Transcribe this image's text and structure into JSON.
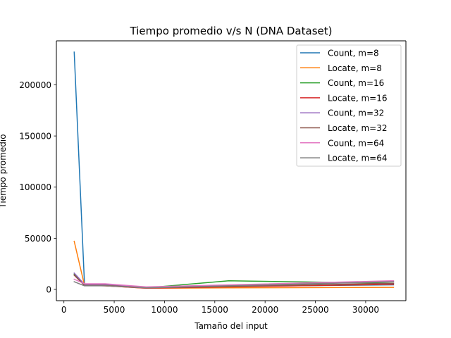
{
  "chart_data": {
    "type": "line",
    "title": "Tiempo promedio v/s N (DNA Dataset)",
    "xlabel": "Tamaño del input",
    "ylabel": "Tiempo promedio",
    "xlim": [
      -750,
      34000
    ],
    "ylim": [
      -11000,
      243000
    ],
    "xticks": [
      0,
      5000,
      10000,
      15000,
      20000,
      25000,
      30000
    ],
    "yticks": [
      0,
      50000,
      100000,
      150000,
      200000
    ],
    "grid": false,
    "legend_position": "upper right",
    "x": [
      1024,
      2048,
      4096,
      8192,
      16384,
      32768
    ],
    "series": [
      {
        "name": "Count, m=8",
        "color": "#1f77b4",
        "values": [
          232000,
          5000,
          4500,
          1500,
          3000,
          4500
        ]
      },
      {
        "name": "Locate, m=8",
        "color": "#ff7f0e",
        "values": [
          47000,
          4000,
          3500,
          1200,
          1500,
          2000
        ]
      },
      {
        "name": "Count, m=16",
        "color": "#2ca02c",
        "values": [
          15000,
          4000,
          3700,
          1500,
          8500,
          6000
        ]
      },
      {
        "name": "Locate, m=16",
        "color": "#d62728",
        "values": [
          14000,
          4000,
          3500,
          1200,
          2500,
          5000
        ]
      },
      {
        "name": "Count, m=32",
        "color": "#9467bd",
        "values": [
          16000,
          5000,
          5000,
          1800,
          4000,
          8000
        ]
      },
      {
        "name": "Locate, m=32",
        "color": "#8c564b",
        "values": [
          14000,
          4000,
          4000,
          1500,
          3000,
          6000
        ]
      },
      {
        "name": "Count, m=64",
        "color": "#e377c2",
        "values": [
          10000,
          5500,
          5500,
          2500,
          4500,
          8500
        ]
      },
      {
        "name": "Locate, m=64",
        "color": "#7f7f7f",
        "values": [
          7500,
          3500,
          3500,
          1500,
          3500,
          7500
        ]
      }
    ]
  }
}
